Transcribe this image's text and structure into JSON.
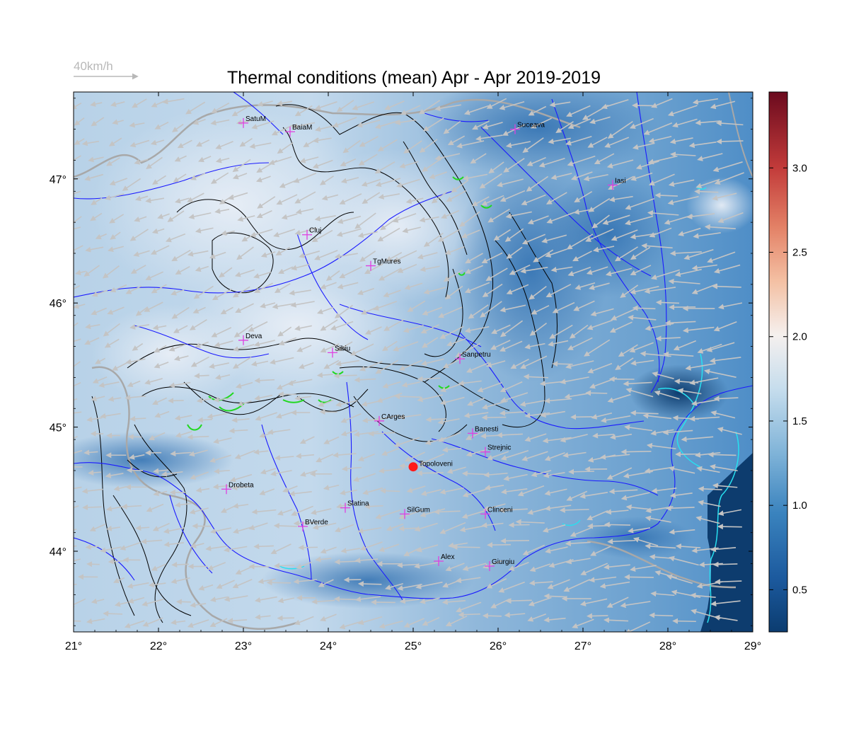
{
  "title": "Thermal conditions (mean) Apr - Apr  2019-2019",
  "wind_legend": {
    "label": "40km/h",
    "color": "#b8b8b8"
  },
  "map": {
    "lon_range": [
      21,
      29
    ],
    "lat_range": [
      43.35,
      47.7
    ],
    "lon_ticks": [
      "21°",
      "22°",
      "23°",
      "24°",
      "25°",
      "26°",
      "27°",
      "28°",
      "29°"
    ],
    "lat_ticks": [
      "44°",
      "45°",
      "46°",
      "47°"
    ],
    "colormap": "RdBu_r",
    "colors": {
      "river": "#1a1aff",
      "border": "#a8a8a8",
      "contour": "#000000",
      "wind_arrow": "#c4c4c4",
      "station_marker": "#e040e0",
      "highlight_marker": "#ff1a1a",
      "lake": "#27e0f0",
      "glacier_green": "#22d822"
    }
  },
  "colorbar": {
    "ticks": [
      "0.5",
      "1.0",
      "1.5",
      "2.0",
      "2.5",
      "3.0"
    ],
    "tick_values": [
      0.5,
      1.0,
      1.5,
      2.0,
      2.5,
      3.0
    ],
    "range": [
      0.25,
      3.45
    ]
  },
  "stations": [
    {
      "name": "SatuM",
      "lon": 23.0,
      "lat": 47.45
    },
    {
      "name": "BaiaM",
      "lon": 23.55,
      "lat": 47.38
    },
    {
      "name": "Suceava",
      "lon": 26.2,
      "lat": 47.4
    },
    {
      "name": "Iasi",
      "lon": 27.35,
      "lat": 46.95
    },
    {
      "name": "Cluj",
      "lon": 23.75,
      "lat": 46.55
    },
    {
      "name": "TgMures",
      "lon": 24.5,
      "lat": 46.3
    },
    {
      "name": "Deva",
      "lon": 23.0,
      "lat": 45.7
    },
    {
      "name": "Sibiu",
      "lon": 24.05,
      "lat": 45.6
    },
    {
      "name": "Sanpetru",
      "lon": 25.55,
      "lat": 45.55
    },
    {
      "name": "CArges",
      "lon": 24.6,
      "lat": 45.05
    },
    {
      "name": "Banesti",
      "lon": 25.7,
      "lat": 44.95
    },
    {
      "name": "Strejnic",
      "lon": 25.85,
      "lat": 44.8
    },
    {
      "name": "Drobeta",
      "lon": 22.8,
      "lat": 44.5
    },
    {
      "name": "Slatina",
      "lon": 24.2,
      "lat": 44.35
    },
    {
      "name": "SilGum",
      "lon": 24.9,
      "lat": 44.3
    },
    {
      "name": "Clinceni",
      "lon": 25.85,
      "lat": 44.3
    },
    {
      "name": "BVerde",
      "lon": 23.7,
      "lat": 44.2
    },
    {
      "name": "Alex",
      "lon": 25.3,
      "lat": 43.92
    },
    {
      "name": "Giurgiu",
      "lon": 25.9,
      "lat": 43.88
    }
  ],
  "highlight_station": {
    "name": "Topoloveni",
    "lon": 25.0,
    "lat": 44.68
  }
}
